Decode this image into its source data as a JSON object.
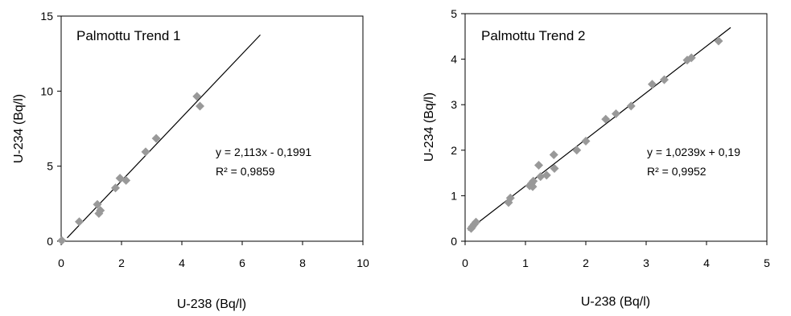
{
  "chart_data": [
    {
      "type": "scatter",
      "title": "Palmottu Trend 1",
      "xlabel": "U-238 (Bq/l)",
      "ylabel": "U-234 (Bq/l)",
      "xlim": [
        0,
        10
      ],
      "ylim": [
        0,
        15
      ],
      "x_ticks": [
        "0",
        "2",
        "4",
        "6",
        "8",
        "10"
      ],
      "y_ticks": [
        "0",
        "5",
        "10",
        "15"
      ],
      "x_tick_values": [
        0,
        2,
        4,
        6,
        8,
        10
      ],
      "y_tick_values": [
        0,
        5,
        10,
        15
      ],
      "grid": false,
      "marker": "diamond",
      "marker_color": "#999999",
      "points": [
        {
          "x": 0.02,
          "y": 0.05
        },
        {
          "x": 0.6,
          "y": 1.3
        },
        {
          "x": 1.2,
          "y": 2.45
        },
        {
          "x": 1.25,
          "y": 1.85
        },
        {
          "x": 1.3,
          "y": 2.05
        },
        {
          "x": 1.8,
          "y": 3.55
        },
        {
          "x": 1.95,
          "y": 4.2
        },
        {
          "x": 2.15,
          "y": 4.05
        },
        {
          "x": 2.8,
          "y": 5.95
        },
        {
          "x": 3.15,
          "y": 6.85
        },
        {
          "x": 4.5,
          "y": 9.65
        },
        {
          "x": 4.6,
          "y": 9.0
        }
      ],
      "trendline": {
        "slope": 2.113,
        "intercept": -0.1991,
        "x_start": 0.2,
        "x_end": 6.6,
        "color": "#000000"
      },
      "equation": "y = 2,113x - 0,1991",
      "r2_label": "R² = 0,9859"
    },
    {
      "type": "scatter",
      "title": "Palmottu Trend 2",
      "xlabel": "U-238 (Bq/l)",
      "ylabel": "U-234 (Bq/l)",
      "xlim": [
        0,
        5
      ],
      "ylim": [
        0,
        5
      ],
      "x_ticks": [
        "0",
        "1",
        "2",
        "3",
        "4",
        "5"
      ],
      "y_ticks": [
        "0",
        "1",
        "2",
        "3",
        "4",
        "5"
      ],
      "x_tick_values": [
        0,
        1,
        2,
        3,
        4,
        5
      ],
      "y_tick_values": [
        0,
        1,
        2,
        3,
        4,
        5
      ],
      "grid": false,
      "marker": "diamond",
      "marker_color": "#999999",
      "points": [
        {
          "x": 0.1,
          "y": 0.28
        },
        {
          "x": 0.12,
          "y": 0.32
        },
        {
          "x": 0.15,
          "y": 0.37
        },
        {
          "x": 0.18,
          "y": 0.42
        },
        {
          "x": 0.72,
          "y": 0.85
        },
        {
          "x": 0.75,
          "y": 0.95
        },
        {
          "x": 1.07,
          "y": 1.22
        },
        {
          "x": 1.1,
          "y": 1.27
        },
        {
          "x": 1.12,
          "y": 1.2
        },
        {
          "x": 1.13,
          "y": 1.32
        },
        {
          "x": 1.22,
          "y": 1.67
        },
        {
          "x": 1.25,
          "y": 1.42
        },
        {
          "x": 1.35,
          "y": 1.45
        },
        {
          "x": 1.47,
          "y": 1.9
        },
        {
          "x": 1.48,
          "y": 1.6
        },
        {
          "x": 1.85,
          "y": 2.0
        },
        {
          "x": 2.0,
          "y": 2.2
        },
        {
          "x": 2.33,
          "y": 2.68
        },
        {
          "x": 2.5,
          "y": 2.8
        },
        {
          "x": 2.75,
          "y": 2.97
        },
        {
          "x": 3.1,
          "y": 3.45
        },
        {
          "x": 3.3,
          "y": 3.55
        },
        {
          "x": 3.68,
          "y": 3.98
        },
        {
          "x": 3.75,
          "y": 4.03
        },
        {
          "x": 4.2,
          "y": 4.4
        }
      ],
      "trendline": {
        "slope": 1.0239,
        "intercept": 0.19,
        "x_start": 0.05,
        "x_end": 4.4,
        "color": "#000000"
      },
      "equation": "y = 1,0239x + 0,19",
      "r2_label": "R² = 0,9952"
    }
  ]
}
